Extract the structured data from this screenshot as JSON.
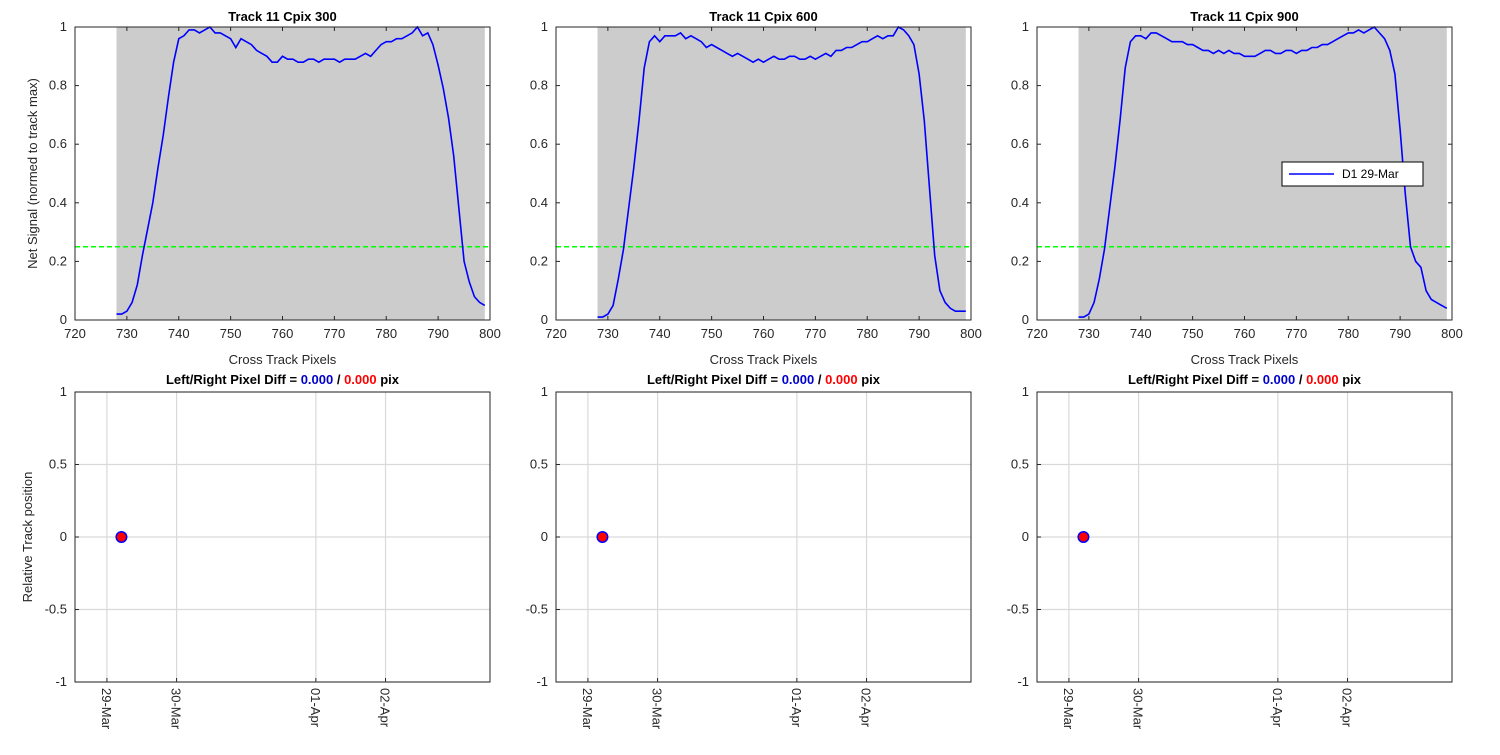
{
  "figure": {
    "ylabel_top": "Net Signal (normed to track max)",
    "ylabel_bottom": "Relative Track position",
    "xlabel_top": "Cross Track Pixels",
    "colors": {
      "shade": "#cccccc",
      "line": "#0000ff",
      "threshold": "#00ff00",
      "left_value": "#0000cc",
      "right_value": "#ff0000",
      "axes": "#262626",
      "grid": "#d9d9d9"
    }
  },
  "chart_data": [
    {
      "type": "line",
      "title": "Track 11  Cpix 300",
      "xlabel": "Cross Track Pixels",
      "ylabel": "Net Signal (normed to track max)",
      "xlim": [
        720,
        800
      ],
      "ylim": [
        0,
        1
      ],
      "xticks": [
        "720",
        "730",
        "740",
        "750",
        "760",
        "770",
        "780",
        "790",
        "800"
      ],
      "yticks": [
        "0",
        "0.2",
        "0.4",
        "0.6",
        "0.8",
        "1"
      ],
      "shaded_region": [
        728,
        799
      ],
      "threshold": 0.25,
      "grid": false,
      "series": [
        {
          "name": "D1 29-Mar",
          "x": [
            728,
            729,
            730,
            731,
            732,
            733,
            734,
            735,
            736,
            737,
            738,
            739,
            740,
            741,
            742,
            743,
            744,
            745,
            746,
            747,
            748,
            749,
            750,
            751,
            752,
            753,
            754,
            755,
            756,
            757,
            758,
            759,
            760,
            761,
            762,
            763,
            764,
            765,
            766,
            767,
            768,
            769,
            770,
            771,
            772,
            773,
            774,
            775,
            776,
            777,
            778,
            779,
            780,
            781,
            782,
            783,
            784,
            785,
            786,
            787,
            788,
            789,
            790,
            791,
            792,
            793,
            794,
            795,
            796,
            797,
            798,
            799
          ],
          "y": [
            0.02,
            0.02,
            0.03,
            0.06,
            0.12,
            0.22,
            0.31,
            0.4,
            0.52,
            0.63,
            0.76,
            0.88,
            0.96,
            0.97,
            0.99,
            0.99,
            0.98,
            0.99,
            1.0,
            0.98,
            0.98,
            0.97,
            0.96,
            0.93,
            0.96,
            0.95,
            0.94,
            0.92,
            0.91,
            0.9,
            0.88,
            0.88,
            0.9,
            0.89,
            0.89,
            0.88,
            0.88,
            0.89,
            0.89,
            0.88,
            0.89,
            0.89,
            0.89,
            0.88,
            0.89,
            0.89,
            0.89,
            0.9,
            0.91,
            0.9,
            0.92,
            0.94,
            0.95,
            0.95,
            0.96,
            0.96,
            0.97,
            0.98,
            1.0,
            0.97,
            0.98,
            0.94,
            0.87,
            0.79,
            0.69,
            0.56,
            0.38,
            0.2,
            0.13,
            0.08,
            0.06,
            0.05
          ]
        }
      ],
      "legend": null
    },
    {
      "type": "line",
      "title": "Track 11  Cpix 600",
      "xlabel": "Cross Track Pixels",
      "ylabel": "",
      "xlim": [
        720,
        800
      ],
      "ylim": [
        0,
        1
      ],
      "xticks": [
        "720",
        "730",
        "740",
        "750",
        "760",
        "770",
        "780",
        "790",
        "800"
      ],
      "yticks": [
        "0",
        "0.2",
        "0.4",
        "0.6",
        "0.8",
        "1"
      ],
      "shaded_region": [
        728,
        799
      ],
      "threshold": 0.25,
      "grid": false,
      "series": [
        {
          "name": "D1 29-Mar",
          "x": [
            728,
            729,
            730,
            731,
            732,
            733,
            734,
            735,
            736,
            737,
            738,
            739,
            740,
            741,
            742,
            743,
            744,
            745,
            746,
            747,
            748,
            749,
            750,
            751,
            752,
            753,
            754,
            755,
            756,
            757,
            758,
            759,
            760,
            761,
            762,
            763,
            764,
            765,
            766,
            767,
            768,
            769,
            770,
            771,
            772,
            773,
            774,
            775,
            776,
            777,
            778,
            779,
            780,
            781,
            782,
            783,
            784,
            785,
            786,
            787,
            788,
            789,
            790,
            791,
            792,
            793,
            794,
            795,
            796,
            797,
            798,
            799
          ],
          "y": [
            0.01,
            0.01,
            0.02,
            0.05,
            0.14,
            0.24,
            0.38,
            0.52,
            0.68,
            0.86,
            0.95,
            0.97,
            0.95,
            0.97,
            0.97,
            0.97,
            0.98,
            0.96,
            0.97,
            0.96,
            0.95,
            0.93,
            0.94,
            0.93,
            0.92,
            0.91,
            0.9,
            0.91,
            0.9,
            0.89,
            0.88,
            0.89,
            0.88,
            0.89,
            0.9,
            0.89,
            0.89,
            0.9,
            0.9,
            0.89,
            0.89,
            0.9,
            0.89,
            0.9,
            0.91,
            0.9,
            0.92,
            0.92,
            0.93,
            0.93,
            0.94,
            0.95,
            0.95,
            0.96,
            0.97,
            0.96,
            0.97,
            0.97,
            1.0,
            0.99,
            0.97,
            0.94,
            0.84,
            0.68,
            0.45,
            0.22,
            0.1,
            0.06,
            0.04,
            0.03,
            0.03,
            0.03
          ]
        }
      ],
      "legend": null
    },
    {
      "type": "line",
      "title": "Track 11  Cpix 900",
      "xlabel": "Cross Track Pixels",
      "ylabel": "",
      "xlim": [
        720,
        800
      ],
      "ylim": [
        0,
        1
      ],
      "xticks": [
        "720",
        "730",
        "740",
        "750",
        "760",
        "770",
        "780",
        "790",
        "800"
      ],
      "yticks": [
        "0",
        "0.2",
        "0.4",
        "0.6",
        "0.8",
        "1"
      ],
      "shaded_region": [
        728,
        799
      ],
      "threshold": 0.25,
      "grid": false,
      "series": [
        {
          "name": "D1 29-Mar",
          "x": [
            728,
            729,
            730,
            731,
            732,
            733,
            734,
            735,
            736,
            737,
            738,
            739,
            740,
            741,
            742,
            743,
            744,
            745,
            746,
            747,
            748,
            749,
            750,
            751,
            752,
            753,
            754,
            755,
            756,
            757,
            758,
            759,
            760,
            761,
            762,
            763,
            764,
            765,
            766,
            767,
            768,
            769,
            770,
            771,
            772,
            773,
            774,
            775,
            776,
            777,
            778,
            779,
            780,
            781,
            782,
            783,
            784,
            785,
            786,
            787,
            788,
            789,
            790,
            791,
            792,
            793,
            794,
            795,
            796,
            797,
            798,
            799
          ],
          "y": [
            0.01,
            0.01,
            0.02,
            0.06,
            0.14,
            0.24,
            0.38,
            0.52,
            0.68,
            0.86,
            0.95,
            0.97,
            0.97,
            0.96,
            0.98,
            0.98,
            0.97,
            0.96,
            0.95,
            0.95,
            0.95,
            0.94,
            0.94,
            0.93,
            0.92,
            0.92,
            0.91,
            0.92,
            0.91,
            0.92,
            0.91,
            0.91,
            0.9,
            0.9,
            0.9,
            0.91,
            0.92,
            0.92,
            0.91,
            0.91,
            0.92,
            0.92,
            0.91,
            0.92,
            0.92,
            0.93,
            0.93,
            0.94,
            0.94,
            0.95,
            0.96,
            0.97,
            0.98,
            0.98,
            0.99,
            0.98,
            0.99,
            1.0,
            0.98,
            0.96,
            0.92,
            0.84,
            0.65,
            0.43,
            0.25,
            0.2,
            0.18,
            0.1,
            0.07,
            0.06,
            0.05,
            0.04
          ]
        }
      ],
      "legend": {
        "entries": [
          "D1 29-Mar"
        ],
        "placement": "right"
      }
    },
    {
      "type": "scatter",
      "title_prefix": "Left/Right Pixel Diff = ",
      "title_left": "0.000",
      "title_sep": " / ",
      "title_right": "0.000",
      "title_suffix": " pix",
      "xlabel": "",
      "ylabel": "Relative Track position",
      "ylim": [
        -1,
        1
      ],
      "xlim": [
        "2015-03-28T13:00",
        "2015-04-03T12:00"
      ],
      "xticks": [
        {
          "date": "2015-03-29",
          "label": "29-Mar"
        },
        {
          "date": "2015-03-30",
          "label": "30-Mar"
        },
        {
          "date": "2015-04-01",
          "label": "01-Apr"
        },
        {
          "date": "2015-04-02",
          "label": "02-Apr"
        }
      ],
      "yticks": [
        "-1",
        "-0.5",
        "0",
        "0.5",
        "1"
      ],
      "grid": true,
      "series": [
        {
          "name": "left",
          "x": [
            "2015-03-29T05:00"
          ],
          "y": [
            0
          ]
        },
        {
          "name": "right",
          "x": [
            "2015-03-29T05:00"
          ],
          "y": [
            0
          ]
        }
      ]
    },
    {
      "type": "scatter",
      "title_prefix": "Left/Right Pixel Diff = ",
      "title_left": "0.000",
      "title_sep": " / ",
      "title_right": "0.000",
      "title_suffix": " pix",
      "xlabel": "",
      "ylabel": "",
      "ylim": [
        -1,
        1
      ],
      "xlim": [
        "2015-03-28T13:00",
        "2015-04-03T12:00"
      ],
      "xticks": [
        {
          "date": "2015-03-29",
          "label": "29-Mar"
        },
        {
          "date": "2015-03-30",
          "label": "30-Mar"
        },
        {
          "date": "2015-04-01",
          "label": "01-Apr"
        },
        {
          "date": "2015-04-02",
          "label": "02-Apr"
        }
      ],
      "yticks": [
        "-1",
        "-0.5",
        "0",
        "0.5",
        "1"
      ],
      "grid": true,
      "series": [
        {
          "name": "left",
          "x": [
            "2015-03-29T05:00"
          ],
          "y": [
            0
          ]
        },
        {
          "name": "right",
          "x": [
            "2015-03-29T05:00"
          ],
          "y": [
            0
          ]
        }
      ]
    },
    {
      "type": "scatter",
      "title_prefix": "Left/Right Pixel Diff = ",
      "title_left": "0.000",
      "title_sep": " / ",
      "title_right": "0.000",
      "title_suffix": " pix",
      "xlabel": "",
      "ylabel": "",
      "ylim": [
        -1,
        1
      ],
      "xlim": [
        "2015-03-28T13:00",
        "2015-04-03T12:00"
      ],
      "xticks": [
        {
          "date": "2015-03-29",
          "label": "29-Mar"
        },
        {
          "date": "2015-03-30",
          "label": "30-Mar"
        },
        {
          "date": "2015-04-01",
          "label": "01-Apr"
        },
        {
          "date": "2015-04-02",
          "label": "02-Apr"
        }
      ],
      "yticks": [
        "-1",
        "-0.5",
        "0",
        "0.5",
        "1"
      ],
      "grid": true,
      "series": [
        {
          "name": "left",
          "x": [
            "2015-03-29T05:00"
          ],
          "y": [
            0
          ]
        },
        {
          "name": "right",
          "x": [
            "2015-03-29T05:00"
          ],
          "y": [
            0
          ]
        }
      ]
    }
  ]
}
